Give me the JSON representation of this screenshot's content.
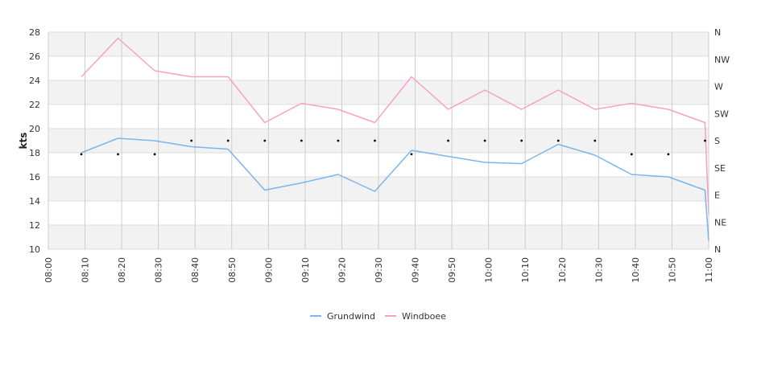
{
  "chart_data": {
    "type": "line",
    "ylabel": "kts",
    "ylim": [
      10,
      28
    ],
    "yticks": [
      10,
      12,
      14,
      16,
      18,
      20,
      22,
      24,
      26,
      28
    ],
    "right_ticks": [
      "N",
      "NE",
      "E",
      "SE",
      "S",
      "SW",
      "W",
      "NW",
      "N"
    ],
    "x_range_minutes": [
      480,
      660
    ],
    "x_tick_labels": [
      "08:00",
      "08:10",
      "08:20",
      "08:30",
      "08:40",
      "08:50",
      "09:00",
      "09:10",
      "09:20",
      "09:30",
      "09:40",
      "09:50",
      "10:00",
      "10:10",
      "10:20",
      "10:30",
      "10:40",
      "10:50",
      "11:00"
    ],
    "grid": true,
    "legend_position": "bottom",
    "series": [
      {
        "name": "Grundwind",
        "color": "#7cb5ec",
        "x": [
          "08:09",
          "08:19",
          "08:29",
          "08:39",
          "08:49",
          "08:59",
          "09:09",
          "09:19",
          "09:29",
          "09:39",
          "09:49",
          "09:59",
          "10:09",
          "10:19",
          "10:29",
          "10:39",
          "10:49",
          "10:59",
          "11:00"
        ],
        "values": [
          18.0,
          19.2,
          19.0,
          18.5,
          18.3,
          14.9,
          15.5,
          16.2,
          14.8,
          18.2,
          17.7,
          17.2,
          17.1,
          18.7,
          17.8,
          16.2,
          16.0,
          14.9,
          10.7
        ]
      },
      {
        "name": "Windboee",
        "color": "#f7a1c4",
        "x": [
          "08:09",
          "08:19",
          "08:29",
          "08:39",
          "08:49",
          "08:59",
          "09:09",
          "09:19",
          "09:29",
          "09:39",
          "09:49",
          "09:59",
          "10:09",
          "10:19",
          "10:29",
          "10:39",
          "10:49",
          "10:59",
          "11:00"
        ],
        "values": [
          24.3,
          27.5,
          24.8,
          24.3,
          24.3,
          20.5,
          22.1,
          21.6,
          20.5,
          24.3,
          21.6,
          23.2,
          21.6,
          23.2,
          21.6,
          22.1,
          21.6,
          20.5,
          12.9
        ]
      }
    ],
    "direction_markers": {
      "x": [
        "08:09",
        "08:19",
        "08:29",
        "08:39",
        "08:49",
        "08:59",
        "09:09",
        "09:19",
        "09:29",
        "09:39",
        "09:49",
        "09:59",
        "10:09",
        "10:19",
        "10:29",
        "10:39",
        "10:49",
        "10:59"
      ],
      "values": [
        "SSE",
        "SSE",
        "SSE",
        "S",
        "S",
        "S",
        "S",
        "S",
        "S",
        "SSE",
        "S",
        "S",
        "S",
        "S",
        "S",
        "SSE",
        "SSE",
        "S"
      ]
    }
  }
}
